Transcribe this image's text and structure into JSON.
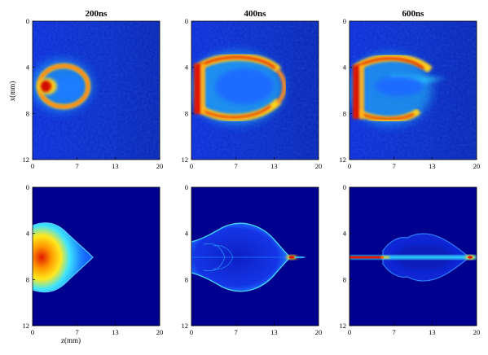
{
  "figure": {
    "columns": [
      "200ns",
      "400ns",
      "600ns"
    ],
    "x_axis_label": "z(mm)",
    "y_axis_label": "x(mm)",
    "x_ticks": [
      "0",
      "7",
      "13",
      "20"
    ],
    "y_ticks": [
      "0",
      "4",
      "8",
      "12"
    ],
    "colors": {
      "background_field": "#00008f",
      "low": "#0a3cf0",
      "mid": "#28d9ff",
      "high": "#ffd21e",
      "peak": "#e01400"
    }
  },
  "chart_data": [
    {
      "type": "heatmap",
      "row": "experiment",
      "title": "200ns",
      "xlim": [
        0,
        20
      ],
      "ylim": [
        12,
        0
      ],
      "xlabel": "",
      "ylabel": "x(mm)"
    },
    {
      "type": "heatmap",
      "row": "experiment",
      "title": "400ns",
      "xlim": [
        0,
        20
      ],
      "ylim": [
        12,
        0
      ],
      "xlabel": "",
      "ylabel": ""
    },
    {
      "type": "heatmap",
      "row": "experiment",
      "title": "600ns",
      "xlim": [
        0,
        20
      ],
      "ylim": [
        12,
        0
      ],
      "xlabel": "",
      "ylabel": ""
    },
    {
      "type": "heatmap",
      "row": "simulation",
      "title": "",
      "xlim": [
        0,
        20
      ],
      "ylim": [
        12,
        0
      ],
      "xlabel": "z(mm)",
      "ylabel": ""
    },
    {
      "type": "heatmap",
      "row": "simulation",
      "title": "",
      "xlim": [
        0,
        20
      ],
      "ylim": [
        12,
        0
      ],
      "xlabel": "",
      "ylabel": ""
    },
    {
      "type": "heatmap",
      "row": "simulation",
      "title": "",
      "xlim": [
        0,
        20
      ],
      "ylim": [
        12,
        0
      ],
      "xlabel": "",
      "ylabel": ""
    }
  ]
}
